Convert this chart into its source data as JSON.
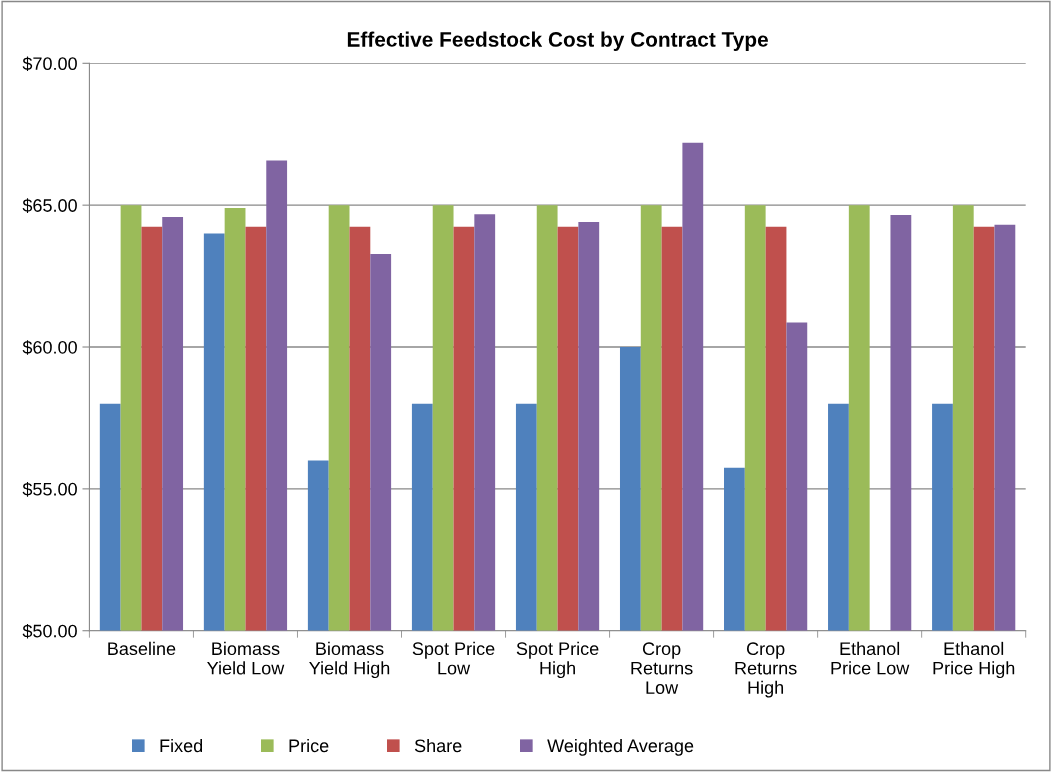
{
  "chart_data": {
    "type": "bar",
    "title": "Effective Feedstock Cost by Contract Type",
    "categories": [
      "Baseline",
      "Biomass\nYield Low",
      "Biomass\nYield High",
      "Spot Price\nLow",
      "Spot Price\nHigh",
      "Crop\nReturns\nLow",
      "Crop\nReturns\nHigh",
      "Ethanol\nPrice Low",
      "Ethanol\nPrice High"
    ],
    "series": [
      {
        "name": "Fixed",
        "color": "#4f81bd",
        "values": [
          58.0,
          64.0,
          56.0,
          58.0,
          58.0,
          60.0,
          55.74,
          58.0,
          58.0
        ]
      },
      {
        "name": "Price",
        "color": "#9bbb59",
        "values": [
          65.0,
          64.9,
          65.0,
          65.0,
          65.0,
          65.0,
          65.0,
          65.0,
          65.0
        ]
      },
      {
        "name": "Share",
        "color": "#c0504d",
        "values": [
          64.24,
          64.24,
          64.24,
          64.24,
          64.24,
          64.24,
          64.24,
          null,
          64.24
        ]
      },
      {
        "name": "Weighted Average",
        "color": "#8064a2",
        "values": [
          64.58,
          66.57,
          63.28,
          64.68,
          64.41,
          67.2,
          60.86,
          64.65,
          64.31
        ]
      }
    ],
    "ylim": [
      50,
      70
    ],
    "yticks": [
      {
        "value": 50,
        "label": "$50.00"
      },
      {
        "value": 55,
        "label": "$55.00"
      },
      {
        "value": 60,
        "label": "$60.00"
      },
      {
        "value": 65,
        "label": "$65.00"
      },
      {
        "value": 70,
        "label": "$70.00"
      }
    ],
    "grid": "y",
    "legend": "bottom"
  }
}
